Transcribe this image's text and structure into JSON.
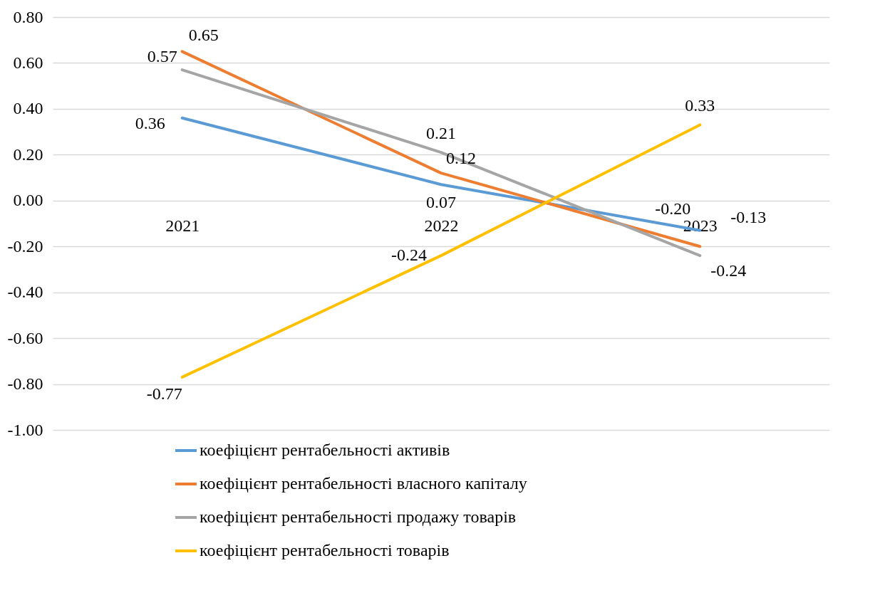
{
  "chart_data": {
    "type": "line",
    "categories": [
      "2021",
      "2022",
      "2023"
    ],
    "series": [
      {
        "name": "коефіцієнт рентабельності активів",
        "color": "#5b9bd5",
        "values": [
          0.36,
          0.07,
          -0.13
        ],
        "value_labels": [
          "0.36",
          "0.07",
          "-0.13"
        ]
      },
      {
        "name": "коефіцієнт рентабельності власного капіталу",
        "color": "#ed7d31",
        "values": [
          0.65,
          0.12,
          -0.2
        ],
        "value_labels": [
          "0.65",
          "0.12",
          "-0.20"
        ]
      },
      {
        "name": "коефіцієнт рентабельності продажу товарів",
        "color": "#a5a5a5",
        "values": [
          0.57,
          0.21,
          -0.24
        ],
        "value_labels": [
          "0.57",
          "0.21",
          "-0.24"
        ]
      },
      {
        "name": "коефіцієнт рентабельності товарів",
        "color": "#ffc000",
        "values": [
          -0.77,
          -0.24,
          0.33
        ],
        "value_labels": [
          "-0.77",
          "-0.24",
          "0.33"
        ]
      }
    ],
    "ylim": [
      -1,
      0.8
    ],
    "yticks": [
      {
        "value": -1,
        "label": "-1.00"
      },
      {
        "value": -0.8,
        "label": "-0.80"
      },
      {
        "value": -0.6,
        "label": "-0.60"
      },
      {
        "value": -0.4,
        "label": "-0.40"
      },
      {
        "value": -0.2,
        "label": "-0.20"
      },
      {
        "value": 0,
        "label": "0.00"
      },
      {
        "value": 0.2,
        "label": "0.20"
      },
      {
        "value": 0.4,
        "label": "0.40"
      },
      {
        "value": 0.6,
        "label": "0.60"
      },
      {
        "value": 0.8,
        "label": "0.80"
      }
    ],
    "grid": "y",
    "legend": "bottom",
    "marker": "none",
    "line_style": "solid"
  }
}
